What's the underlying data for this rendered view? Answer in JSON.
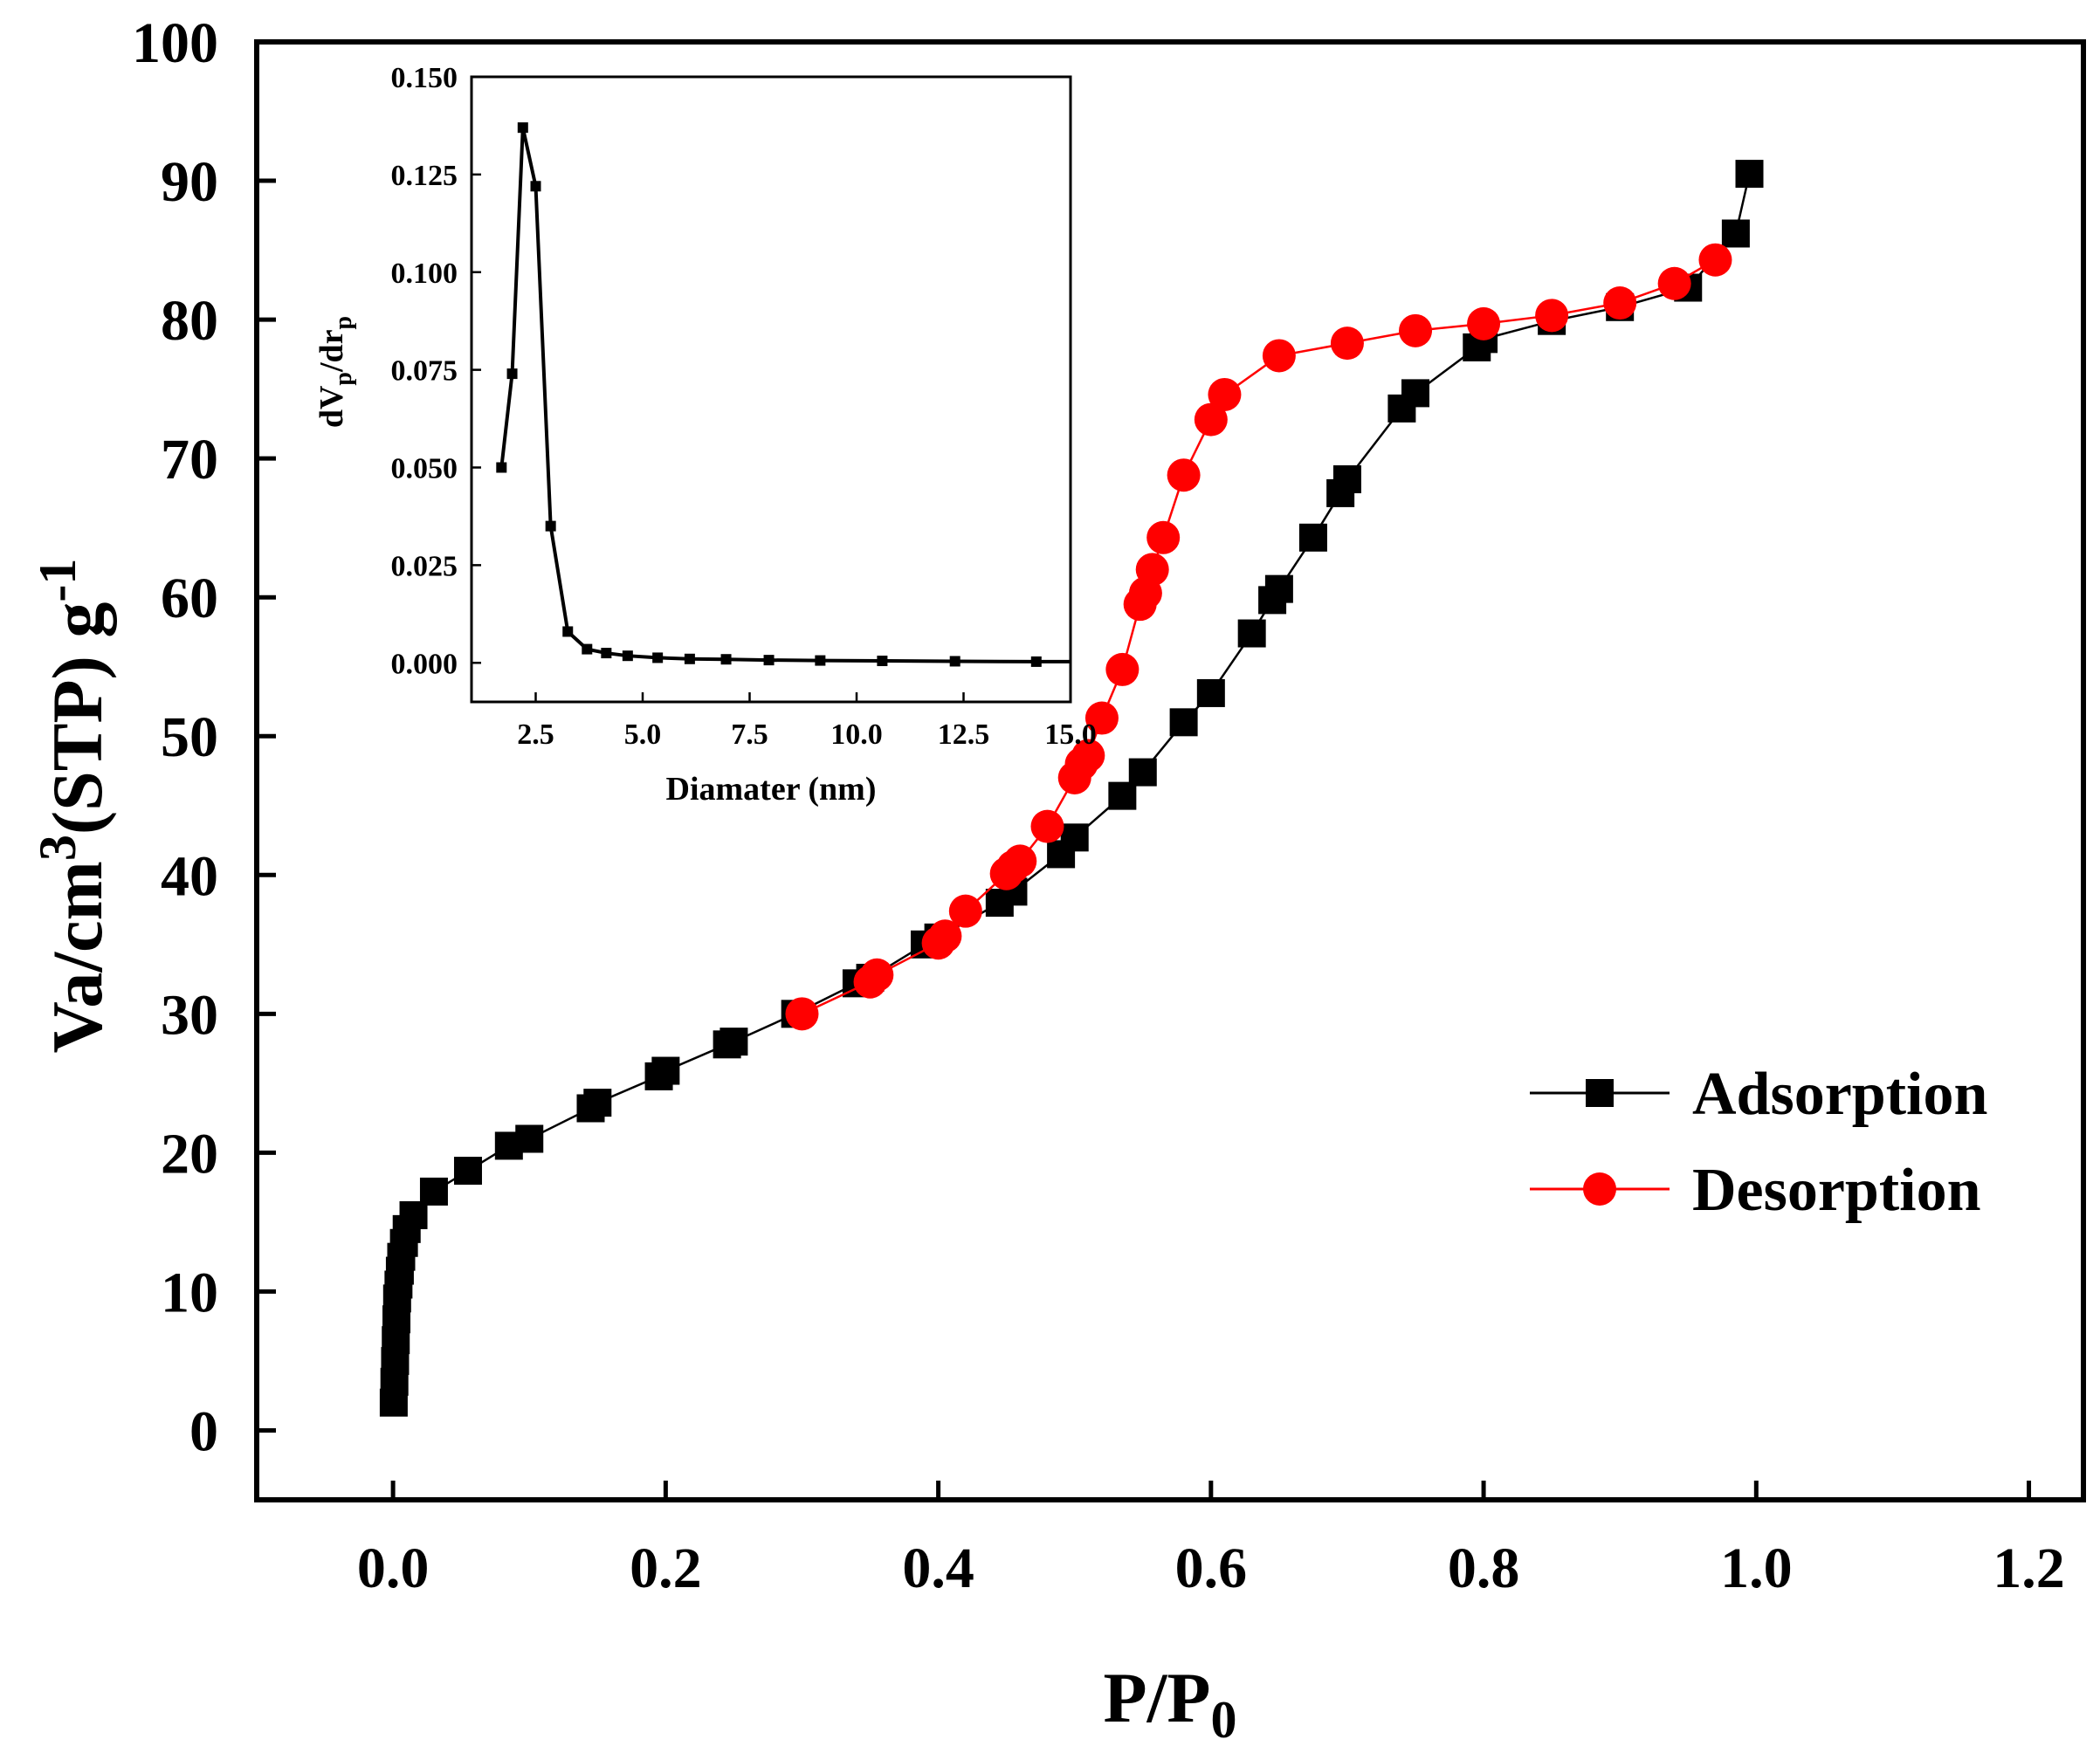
{
  "chart_data": [
    {
      "type": "scatter",
      "title": "",
      "xlabel_parts": [
        "P/P",
        "0"
      ],
      "ylabel_parts": [
        "Va/cm",
        "3",
        "(STP) g",
        "-1"
      ],
      "xlim": [
        -0.1,
        1.24
      ],
      "ylim": [
        -5,
        100
      ],
      "xticks": [
        {
          "v": 0.0,
          "label": "0.0"
        },
        {
          "v": 0.2,
          "label": "0.2"
        },
        {
          "v": 0.4,
          "label": "0.4"
        },
        {
          "v": 0.6,
          "label": "0.6"
        },
        {
          "v": 0.8,
          "label": "0.8"
        },
        {
          "v": 1.0,
          "label": "1.0"
        },
        {
          "v": 1.2,
          "label": "1.2"
        }
      ],
      "yticks": [
        {
          "v": 0,
          "label": "0"
        },
        {
          "v": 10,
          "label": "10"
        },
        {
          "v": 20,
          "label": "20"
        },
        {
          "v": 30,
          "label": "30"
        },
        {
          "v": 40,
          "label": "40"
        },
        {
          "v": 50,
          "label": "50"
        },
        {
          "v": 60,
          "label": "60"
        },
        {
          "v": 70,
          "label": "70"
        },
        {
          "v": 80,
          "label": "80"
        },
        {
          "v": 90,
          "label": "90"
        },
        {
          "v": 100,
          "label": "100"
        }
      ],
      "legend_position": "right",
      "series": [
        {
          "name": "Adsorption",
          "color": "#000000",
          "marker": "square",
          "x": [
            0.0005,
            0.001,
            0.0015,
            0.002,
            0.0025,
            0.003,
            0.004,
            0.005,
            0.006,
            0.008,
            0.01,
            0.015,
            0.03,
            0.055,
            0.085,
            0.1,
            0.145,
            0.15,
            0.195,
            0.2,
            0.245,
            0.25,
            0.295,
            0.34,
            0.35,
            0.39,
            0.4,
            0.445,
            0.455,
            0.49,
            0.5,
            0.535,
            0.55,
            0.58,
            0.6,
            0.63,
            0.645,
            0.65,
            0.675,
            0.695,
            0.7,
            0.74,
            0.75,
            0.795,
            0.8,
            0.85,
            0.9,
            0.95,
            0.985,
            0.995
          ],
          "y": [
            2.0,
            3.5,
            5.0,
            6.5,
            8.0,
            9.5,
            10.5,
            11.5,
            12.5,
            13.5,
            14.5,
            15.5,
            17.2,
            18.7,
            20.5,
            21.0,
            23.2,
            23.6,
            25.5,
            25.9,
            27.8,
            28.0,
            30.0,
            32.2,
            32.6,
            35.0,
            35.5,
            38.0,
            38.8,
            41.5,
            42.7,
            45.7,
            47.4,
            51.0,
            53.1,
            57.4,
            59.8,
            60.6,
            64.3,
            67.5,
            68.5,
            73.6,
            74.7,
            78.0,
            78.6,
            79.9,
            80.9,
            82.3,
            86.2,
            90.5
          ]
        },
        {
          "name": "Desorption",
          "color": "#ff0000",
          "marker": "circle",
          "x": [
            0.3,
            0.35,
            0.355,
            0.4,
            0.405,
            0.42,
            0.45,
            0.455,
            0.46,
            0.48,
            0.5,
            0.505,
            0.51,
            0.52,
            0.535,
            0.548,
            0.552,
            0.557,
            0.565,
            0.58,
            0.6,
            0.61,
            0.65,
            0.7,
            0.75,
            0.8,
            0.85,
            0.9,
            0.94,
            0.97
          ],
          "y": [
            30.0,
            32.3,
            32.8,
            35.1,
            35.6,
            37.4,
            40.1,
            40.6,
            41.0,
            43.5,
            47.0,
            48.0,
            48.6,
            51.3,
            54.8,
            59.5,
            60.3,
            62.0,
            64.3,
            68.8,
            72.8,
            74.6,
            77.4,
            78.3,
            79.2,
            79.7,
            80.3,
            81.2,
            82.6,
            84.3
          ]
        }
      ]
    },
    {
      "type": "line",
      "title": "",
      "xlabel": "Diamater (nm)",
      "ylabel_parts": [
        "dV",
        "p",
        "/dr",
        "p"
      ],
      "xlim": [
        1.0,
        15.0
      ],
      "ylim": [
        -0.01,
        0.15
      ],
      "xticks": [
        {
          "v": 2.5,
          "label": "2.5"
        },
        {
          "v": 5.0,
          "label": "5.0"
        },
        {
          "v": 7.5,
          "label": "7.5"
        },
        {
          "v": 10.0,
          "label": "10.0"
        },
        {
          "v": 12.5,
          "label": "12.5"
        },
        {
          "v": 15.0,
          "label": "15.0"
        }
      ],
      "yticks": [
        {
          "v": 0.0,
          "label": "0.000"
        },
        {
          "v": 0.025,
          "label": "0.025"
        },
        {
          "v": 0.05,
          "label": "0.050"
        },
        {
          "v": 0.075,
          "label": "0.075"
        },
        {
          "v": 0.1,
          "label": "0.100"
        },
        {
          "v": 0.125,
          "label": "0.125"
        },
        {
          "v": 0.15,
          "label": "0.150"
        }
      ],
      "series": [
        {
          "color": "#000000",
          "marker": "square",
          "x": [
            1.7,
            1.95,
            2.2,
            2.5,
            2.85,
            3.25,
            3.7,
            4.15,
            4.65,
            5.35,
            6.1,
            6.95,
            7.95,
            9.15,
            10.6,
            12.3,
            14.2
          ],
          "y": [
            0.05,
            0.074,
            0.137,
            0.122,
            0.035,
            0.008,
            0.0035,
            0.0025,
            0.0018,
            0.0013,
            0.001,
            0.0009,
            0.0007,
            0.0006,
            0.0005,
            0.0004,
            0.0003
          ]
        }
      ]
    }
  ]
}
